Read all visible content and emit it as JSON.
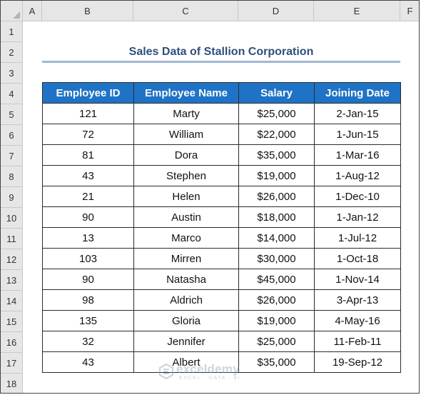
{
  "sheet": {
    "columns": [
      "A",
      "B",
      "C",
      "D",
      "E",
      "F"
    ],
    "rows": [
      "1",
      "2",
      "3",
      "4",
      "5",
      "6",
      "7",
      "8",
      "9",
      "10",
      "11",
      "12",
      "13",
      "14",
      "15",
      "16",
      "17",
      "18"
    ]
  },
  "title": "Sales Data of Stallion Corporation",
  "table": {
    "headers": [
      "Employee ID",
      "Employee Name",
      "Salary",
      "Joining Date"
    ],
    "rows": [
      [
        "121",
        "Marty",
        "$25,000",
        "2-Jan-15"
      ],
      [
        "72",
        "William",
        "$22,000",
        "1-Jun-15"
      ],
      [
        "81",
        "Dora",
        "$35,000",
        "1-Mar-16"
      ],
      [
        "43",
        "Stephen",
        "$19,000",
        "1-Aug-12"
      ],
      [
        "21",
        "Helen",
        "$26,000",
        "1-Dec-10"
      ],
      [
        "90",
        "Austin",
        "$18,000",
        "1-Jan-12"
      ],
      [
        "13",
        "Marco",
        "$14,000",
        "1-Jul-12"
      ],
      [
        "103",
        "Mirren",
        "$30,000",
        "1-Oct-18"
      ],
      [
        "90",
        "Natasha",
        "$45,000",
        "1-Nov-14"
      ],
      [
        "98",
        "Aldrich",
        "$26,000",
        "3-Apr-13"
      ],
      [
        "135",
        "Gloria",
        "$19,000",
        "4-May-16"
      ],
      [
        "32",
        "Jennifer",
        "$25,000",
        "11-Feb-11"
      ],
      [
        "43",
        "Albert",
        "$35,000",
        "19-Sep-12"
      ]
    ]
  },
  "watermark": {
    "name": "exceldemy",
    "tagline": "EXCEL · DATA · BI",
    "icon": "exceldemy-logo-icon"
  },
  "colors": {
    "header_bg": "#1f73c6",
    "title_text": "#2e4f7d",
    "title_underline": "#9db7d6"
  }
}
